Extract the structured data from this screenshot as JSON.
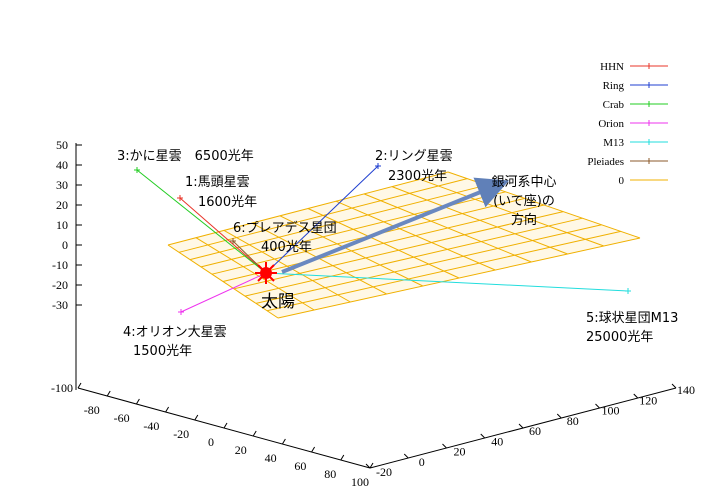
{
  "chart_data": {
    "type": "line",
    "title": "",
    "legend": {
      "placement": "top-right",
      "entries": [
        {
          "name": "HHN",
          "color": "#e8352a"
        },
        {
          "name": "Ring",
          "color": "#1f3fd0"
        },
        {
          "name": "Crab",
          "color": "#22cc22"
        },
        {
          "name": "Orion",
          "color": "#ee33ee"
        },
        {
          "name": "M13",
          "color": "#22dddd"
        },
        {
          "name": "Pleiades",
          "color": "#8b5a2b"
        },
        {
          "name": "0",
          "color": "#f0b000"
        }
      ]
    },
    "axes": {
      "z_ticks": [
        "50",
        "40",
        "30",
        "20",
        "10",
        "0",
        "-10",
        "-20",
        "-30"
      ],
      "x_ticks": [
        "-100",
        "-80",
        "-60",
        "-40",
        "-20",
        "0",
        "20",
        "40",
        "60",
        "80",
        "100"
      ],
      "y_ticks": [
        "-20",
        "0",
        "20",
        "40",
        "60",
        "80",
        "100",
        "120",
        "140"
      ]
    },
    "annotations": {
      "crab": [
        "3:かに星雲　6500光年"
      ],
      "hhn": [
        "1:馬頭星雲",
        "1600光年"
      ],
      "ring": [
        "2:リング星雲",
        "2300光年"
      ],
      "pleiades": [
        "6:プレアデス星団",
        "400光年"
      ],
      "galactic": [
        "銀河系中心",
        "(いて座)の",
        "方向"
      ],
      "orion": [
        "4:オリオン大星雲",
        "1500光年"
      ],
      "m13": [
        "5:球状星団M13",
        "25000光年"
      ],
      "sun": [
        "太陽"
      ]
    },
    "grid": true
  }
}
